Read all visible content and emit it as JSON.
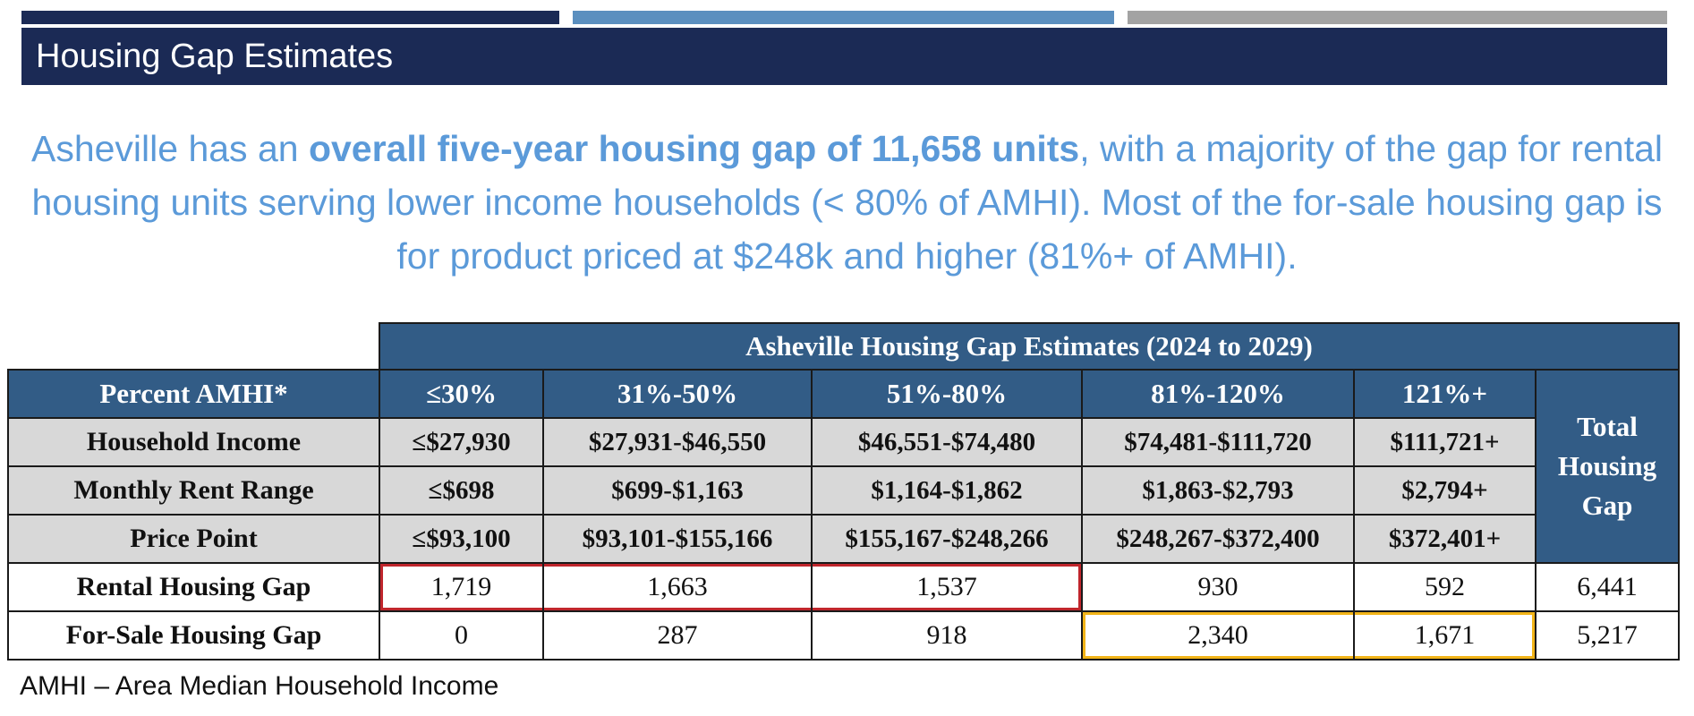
{
  "slide": {
    "title": "Housing Gap Estimates",
    "accent_colors": [
      "#1b2a55",
      "#5b8fbf",
      "#a3a3a3"
    ]
  },
  "summary": {
    "part1": "Asheville has an ",
    "bold": "overall five-year housing gap of 11,658 units",
    "part2": ", with a majority of the gap for rental housing units serving lower income households (< 80% of AMHI).  Most of the for-sale housing gap is for product priced at $248k and higher (81%+ of AMHI)."
  },
  "table": {
    "caption": "Asheville Housing Gap Estimates (2024 to 2029)",
    "header_label": "Percent AMHI*",
    "columns": [
      "≤30%",
      "31%-50%",
      "51%-80%",
      "81%-120%",
      "121%+"
    ],
    "total_header": "Total Housing Gap",
    "attribute_rows": [
      {
        "label": "Household Income",
        "values": [
          "≤$27,930",
          "$27,931-$46,550",
          "$46,551-$74,480",
          "$74,481-$111,720",
          "$111,721+"
        ]
      },
      {
        "label": "Monthly Rent Range",
        "values": [
          "≤$698",
          "$699-$1,163",
          "$1,164-$1,862",
          "$1,863-$2,793",
          "$2,794+"
        ]
      },
      {
        "label": "Price Point",
        "values": [
          "≤$93,100",
          "$93,101-$155,166",
          "$155,167-$248,266",
          "$248,267-$372,400",
          "$372,401+"
        ]
      }
    ],
    "gap_rows": [
      {
        "label": "Rental Housing Gap",
        "values": [
          "1,719",
          "1,663",
          "1,537",
          "930",
          "592"
        ],
        "total": "6,441"
      },
      {
        "label": "For-Sale Housing Gap",
        "values": [
          "0",
          "287",
          "918",
          "2,340",
          "1,671"
        ],
        "total": "5,217"
      }
    ],
    "highlight_colors": {
      "rental_low_income": "#c0262c",
      "for_sale_high_income": "#f2b418"
    }
  },
  "footnote": "AMHI – Area Median Household Income"
}
